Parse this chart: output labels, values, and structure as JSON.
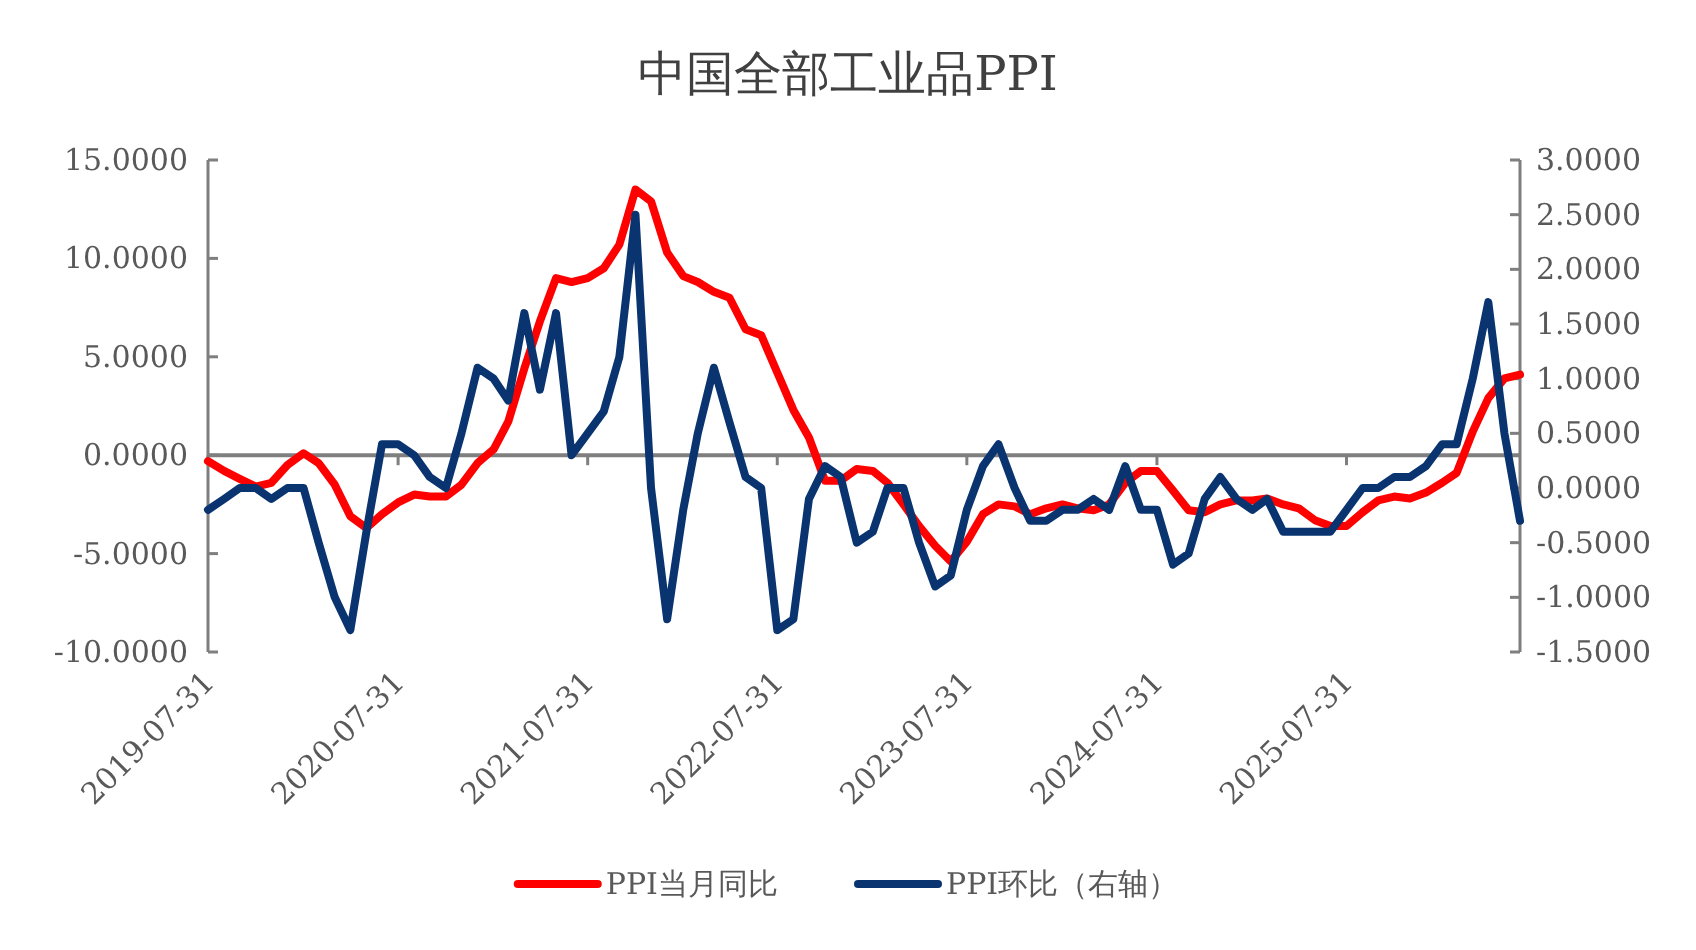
{
  "chart_data": {
    "type": "line",
    "title": "中国全部工业品PPI",
    "x": [
      "2019-07-31",
      "2019-08-31",
      "2019-09-30",
      "2019-10-31",
      "2019-11-30",
      "2019-12-31",
      "2020-01-31",
      "2020-02-29",
      "2020-03-31",
      "2020-04-30",
      "2020-05-31",
      "2020-06-30",
      "2020-07-31",
      "2020-08-31",
      "2020-09-30",
      "2020-10-31",
      "2020-11-30",
      "2020-12-31",
      "2021-01-31",
      "2021-02-28",
      "2021-03-31",
      "2021-04-30",
      "2021-05-31",
      "2021-06-30",
      "2021-07-31",
      "2021-08-31",
      "2021-09-30",
      "2021-10-31",
      "2021-11-30",
      "2021-12-31",
      "2022-01-31",
      "2022-02-28",
      "2022-03-31",
      "2022-04-30",
      "2022-05-31",
      "2022-06-30",
      "2022-07-31",
      "2022-08-31",
      "2022-09-30",
      "2022-10-31",
      "2022-11-30",
      "2022-12-31",
      "2023-01-31",
      "2023-02-28",
      "2023-03-31",
      "2023-04-30",
      "2023-05-31",
      "2023-06-30",
      "2023-07-31",
      "2023-08-31",
      "2023-09-30",
      "2023-10-31",
      "2023-11-30",
      "2023-12-31",
      "2024-01-31",
      "2024-02-29",
      "2024-03-31",
      "2024-04-30",
      "2024-05-31",
      "2024-06-30",
      "2024-07-31",
      "2024-08-31",
      "2024-09-30",
      "2024-10-31",
      "2024-11-30",
      "2024-12-31",
      "2025-01-31",
      "2025-02-28",
      "2025-03-31",
      "2025-04-30",
      "2025-05-31",
      "2025-06-30",
      "2025-07-31",
      "2025-08-31",
      "2025-09-30",
      "2025-10-31",
      "2025-11-30",
      "2025-12-31",
      "2026-01-31",
      "2026-02-28",
      "2026-03-31",
      "2026-04-30",
      "2026-05-31",
      "2026-06-30"
    ],
    "series": [
      {
        "name": "PPI当月同比",
        "color": "#ff0000",
        "values": [
          -0.3,
          -0.8,
          -1.2,
          -1.6,
          -1.4,
          -0.5,
          0.1,
          -0.4,
          -1.5,
          -3.1,
          -3.7,
          -3.0,
          -2.4,
          -2.0,
          -2.1,
          -2.1,
          -1.5,
          -0.4,
          0.3,
          1.7,
          4.4,
          6.8,
          9.0,
          8.8,
          9.0,
          9.5,
          10.7,
          13.5,
          12.9,
          10.3,
          9.1,
          8.8,
          8.3,
          8.0,
          6.4,
          6.1,
          4.2,
          2.3,
          0.9,
          -1.3,
          -1.3,
          -0.7,
          -0.8,
          -1.4,
          -2.5,
          -3.6,
          -4.6,
          -5.4,
          -4.4,
          -3.0,
          -2.5,
          -2.6,
          -3.0,
          -2.7,
          -2.5,
          -2.7,
          -2.8,
          -2.5,
          -1.4,
          -0.8,
          -0.8,
          -1.8,
          -2.8,
          -2.9,
          -2.5,
          -2.3,
          -2.3,
          -2.2,
          -2.5,
          -2.7,
          -3.3,
          -3.6,
          -3.6,
          -2.9,
          -2.3,
          -2.1,
          -2.2,
          -1.9,
          -1.4,
          -0.9,
          1.2,
          2.9,
          3.9,
          4.1
        ]
      },
      {
        "name": "PPI环比（右轴）",
        "color": "#0a3470",
        "axis": "y2",
        "values": [
          -0.2,
          -0.1,
          0.0,
          0.0,
          -0.1,
          0.0,
          0.0,
          -0.5,
          -1.0,
          -1.3,
          -0.4,
          0.4,
          0.4,
          0.3,
          0.1,
          0.0,
          0.5,
          1.1,
          1.0,
          0.8,
          1.6,
          0.9,
          1.6,
          0.3,
          0.5,
          0.7,
          1.2,
          2.5,
          0.0,
          -1.2,
          -0.2,
          0.5,
          1.1,
          0.6,
          0.1,
          0.0,
          -1.3,
          -1.2,
          -0.1,
          0.2,
          0.1,
          -0.5,
          -0.4,
          0.0,
          0.0,
          -0.5,
          -0.9,
          -0.8,
          -0.2,
          0.2,
          0.4,
          0.0,
          -0.3,
          -0.3,
          -0.2,
          -0.2,
          -0.1,
          -0.2,
          0.2,
          -0.2,
          -0.2,
          -0.7,
          -0.6,
          -0.1,
          0.1,
          -0.1,
          -0.2,
          -0.1,
          -0.4,
          -0.4,
          -0.4,
          -0.4,
          -0.2,
          0.0,
          0.0,
          0.1,
          0.1,
          0.2,
          0.4,
          0.4,
          1.0,
          1.7,
          0.5,
          -0.3
        ]
      }
    ],
    "xlim": [
      "2019-07-31",
      "2026-06-30"
    ],
    "xticks": [
      "2019-07-31",
      "2020-07-31",
      "2021-07-31",
      "2022-07-31",
      "2023-07-31",
      "2024-07-31",
      "2025-07-31"
    ],
    "ylim": [
      -10,
      15
    ],
    "yticks": [
      {
        "value": -10,
        "label": "-10.0000"
      },
      {
        "value": -5,
        "label": "-5.0000"
      },
      {
        "value": 0,
        "label": "0.0000"
      },
      {
        "value": 5,
        "label": "5.0000"
      },
      {
        "value": 10,
        "label": "10.0000"
      },
      {
        "value": 15,
        "label": "15.0000"
      }
    ],
    "y2lim": [
      -1.5,
      3
    ],
    "y2ticks": [
      {
        "value": -1.5,
        "label": "-1.5000"
      },
      {
        "value": -1,
        "label": "-1.0000"
      },
      {
        "value": -0.5,
        "label": "-0.5000"
      },
      {
        "value": 0,
        "label": "0.0000"
      },
      {
        "value": 0.5,
        "label": "0.5000"
      },
      {
        "value": 1,
        "label": "1.0000"
      },
      {
        "value": 1.5,
        "label": "1.5000"
      },
      {
        "value": 2,
        "label": "2.0000"
      },
      {
        "value": 2.5,
        "label": "2.5000"
      },
      {
        "value": 3,
        "label": "3.0000"
      }
    ],
    "legend": "bottom",
    "marker": "none",
    "line_style": "solid"
  }
}
